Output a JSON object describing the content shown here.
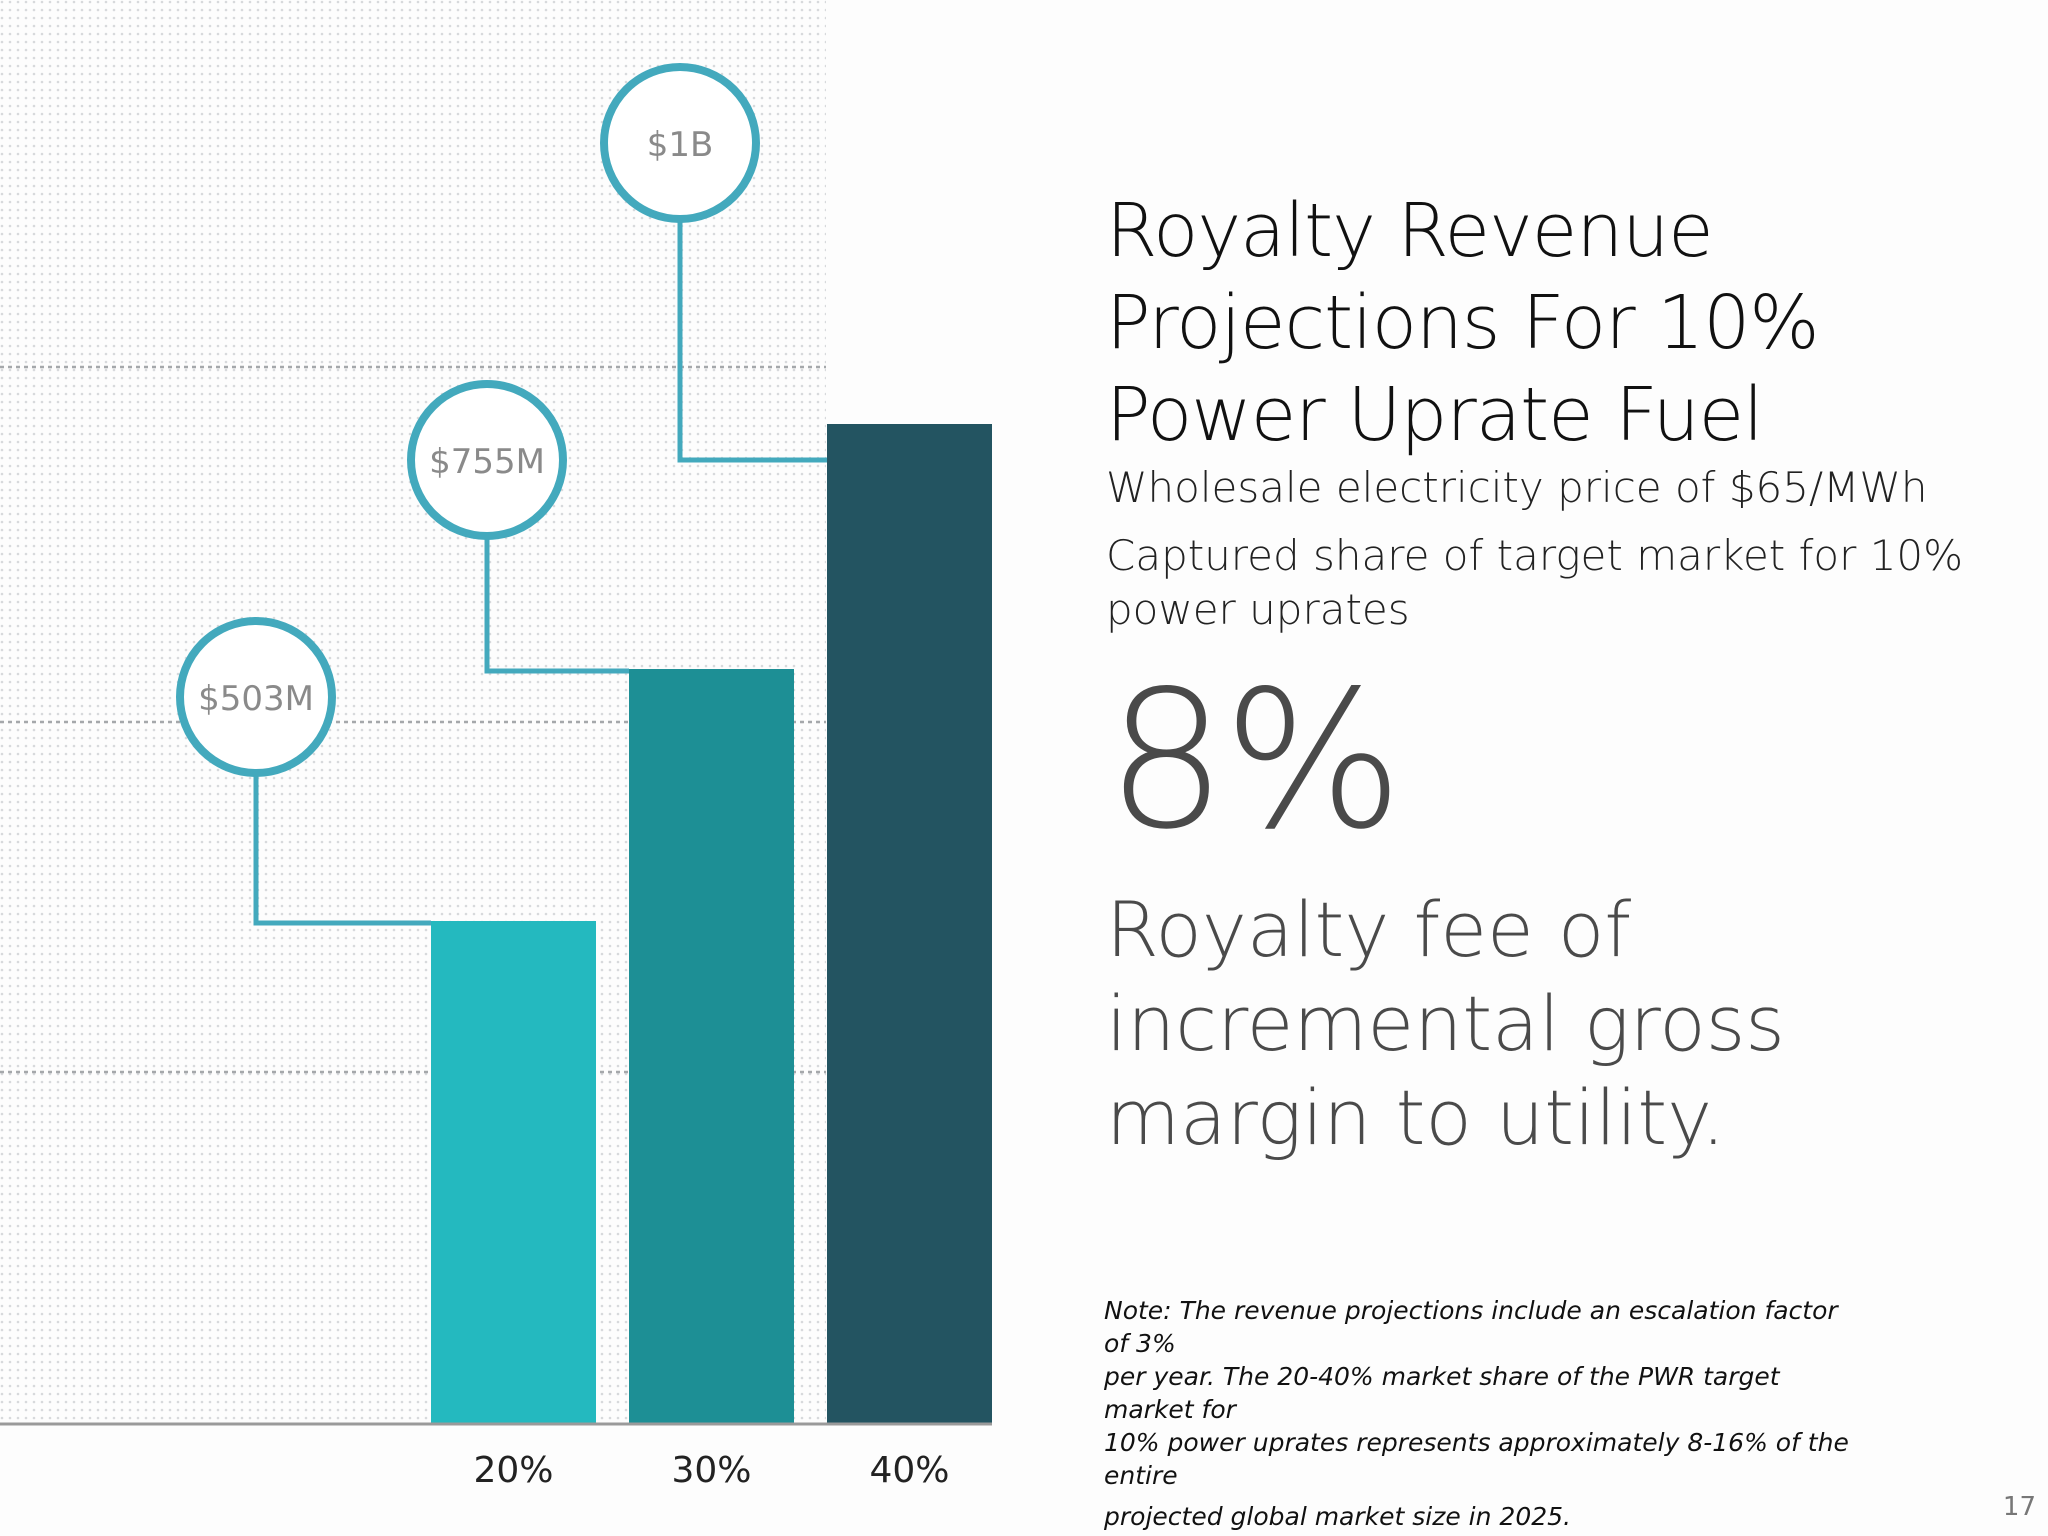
{
  "chart_data": {
    "type": "bar",
    "categories": [
      "20%",
      "30%",
      "40%"
    ],
    "values": [
      503,
      755,
      1000
    ],
    "value_labels": [
      "$503M",
      "$755M",
      "$1B"
    ],
    "units": "USD millions",
    "colors": [
      "#24b9bf",
      "#1d8f95",
      "#235461"
    ],
    "callout_color": "#43a9bd",
    "ylim": [
      0,
      1424
    ],
    "grid": "dotted background with dashed horizontal guide lines",
    "title": "",
    "xlabel": "",
    "ylabel": ""
  },
  "panel": {
    "title_lines": [
      "Royalty Revenue",
      "Projections For 10%",
      "Power Uprate Fuel"
    ],
    "subtitle1": "Wholesale electricity price of $65/MWh",
    "subtitle2_lines": [
      "Captured share of target market for 10%",
      "power uprates"
    ],
    "big_number": "8%",
    "desc_lines": [
      "Royalty fee of",
      "incremental gross",
      "margin to utility."
    ],
    "note_label": "Note:",
    "note_lines": [
      "The revenue projections include an escalation factor of 3%",
      "per year. The 20-40% market share of the PWR target market for",
      "10% power uprates represents approximately 8-16% of the entire",
      "projected global market size in 2025."
    ]
  },
  "page_number": "17"
}
